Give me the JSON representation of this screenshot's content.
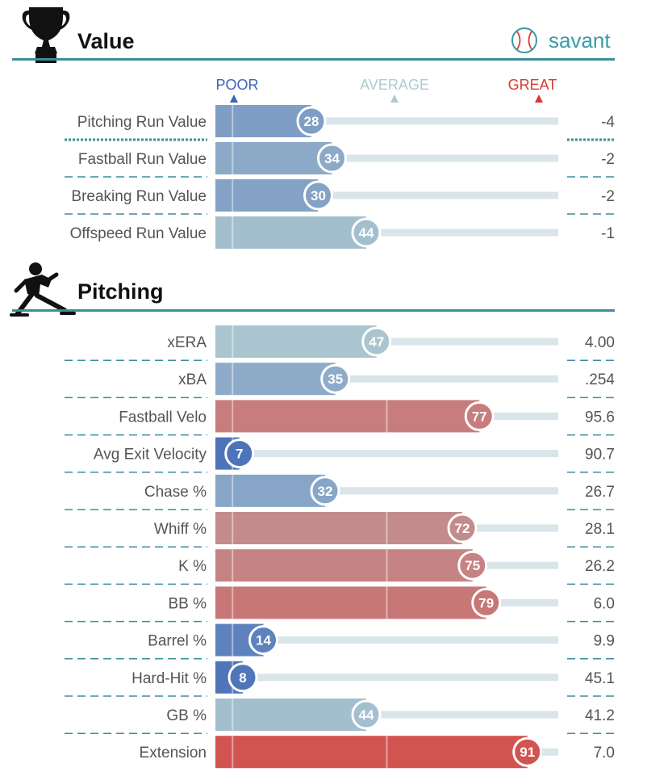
{
  "brand": "savant",
  "colors": {
    "poor": "#3d65b5",
    "average": "#b1cbd1",
    "great": "#d93a35",
    "track": "#d9e5e8",
    "rule": "#3a8f9a"
  },
  "scale": {
    "poor": "POOR",
    "average": "AVERAGE",
    "great": "GREAT"
  },
  "sections": [
    {
      "id": "value",
      "title": "Value",
      "icon": "trophy-icon"
    },
    {
      "id": "pitching",
      "title": "Pitching",
      "icon": "pitcher-icon"
    }
  ],
  "chart_data": {
    "type": "bar",
    "orientation": "horizontal",
    "xlim": [
      0,
      100
    ],
    "groups": [
      {
        "section": "Value",
        "metrics": [
          {
            "label": "Pitching Run Value",
            "percentile": 28,
            "value": "-4"
          },
          {
            "label": "Fastball Run Value",
            "percentile": 34,
            "value": "-2"
          },
          {
            "label": "Breaking Run Value",
            "percentile": 30,
            "value": "-2"
          },
          {
            "label": "Offspeed Run Value",
            "percentile": 44,
            "value": "-1"
          }
        ]
      },
      {
        "section": "Pitching",
        "metrics": [
          {
            "label": "xERA",
            "percentile": 47,
            "value": "4.00"
          },
          {
            "label": "xBA",
            "percentile": 35,
            "value": ".254"
          },
          {
            "label": "Fastball Velo",
            "percentile": 77,
            "value": "95.6"
          },
          {
            "label": "Avg Exit Velocity",
            "percentile": 7,
            "value": "90.7"
          },
          {
            "label": "Chase %",
            "percentile": 32,
            "value": "26.7"
          },
          {
            "label": "Whiff %",
            "percentile": 72,
            "value": "28.1"
          },
          {
            "label": "K %",
            "percentile": 75,
            "value": "26.2"
          },
          {
            "label": "BB %",
            "percentile": 79,
            "value": "6.0"
          },
          {
            "label": "Barrel %",
            "percentile": 14,
            "value": "9.9"
          },
          {
            "label": "Hard-Hit %",
            "percentile": 8,
            "value": "45.1"
          },
          {
            "label": "GB %",
            "percentile": 44,
            "value": "41.2"
          },
          {
            "label": "Extension",
            "percentile": 91,
            "value": "7.0"
          }
        ]
      }
    ]
  }
}
